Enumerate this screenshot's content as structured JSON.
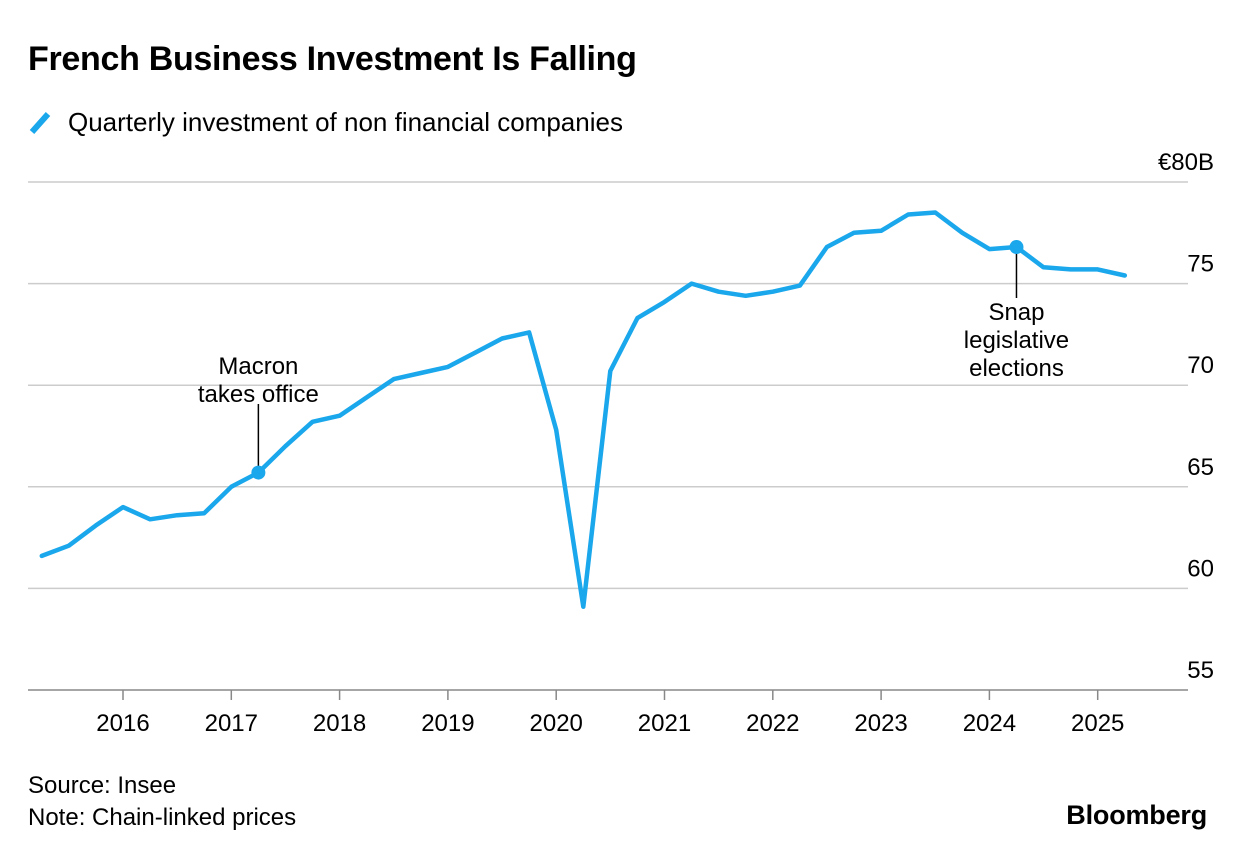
{
  "title": "French Business Investment Is Falling",
  "legend": {
    "label": "Quarterly investment of non financial companies"
  },
  "colors": {
    "series": "#1aa7ec",
    "grid": "#cccccc",
    "axis": "#888888",
    "text": "#000000"
  },
  "footer": {
    "source": "Source: Insee",
    "note": "Note: Chain-linked prices"
  },
  "brand": "Bloomberg",
  "chart_data": {
    "type": "line",
    "title": "French Business Investment Is Falling",
    "xlabel": "",
    "ylabel": "",
    "ylim": [
      55,
      80
    ],
    "xlim": [
      "2015-04",
      "2025-07"
    ],
    "grid": true,
    "legend": "top-left",
    "y_axis_side": "right",
    "y_ticks": [
      {
        "value": 80,
        "label": "€80B"
      },
      {
        "value": 75,
        "label": "75"
      },
      {
        "value": 70,
        "label": "70"
      },
      {
        "value": 65,
        "label": "65"
      },
      {
        "value": 60,
        "label": "60"
      },
      {
        "value": 55,
        "label": "55"
      }
    ],
    "x_ticks": [
      "2016",
      "2017",
      "2018",
      "2019",
      "2020",
      "2021",
      "2022",
      "2023",
      "2024",
      "2025"
    ],
    "series": [
      {
        "name": "Quarterly investment of non financial companies",
        "x": [
          "2015-Q2",
          "2015-Q3",
          "2015-Q4",
          "2016-Q1",
          "2016-Q2",
          "2016-Q3",
          "2016-Q4",
          "2017-Q1",
          "2017-Q2",
          "2017-Q3",
          "2017-Q4",
          "2018-Q1",
          "2018-Q2",
          "2018-Q3",
          "2018-Q4",
          "2019-Q1",
          "2019-Q2",
          "2019-Q3",
          "2019-Q4",
          "2020-Q1",
          "2020-Q2",
          "2020-Q3",
          "2020-Q4",
          "2021-Q1",
          "2021-Q2",
          "2021-Q3",
          "2021-Q4",
          "2022-Q1",
          "2022-Q2",
          "2022-Q3",
          "2022-Q4",
          "2023-Q1",
          "2023-Q2",
          "2023-Q3",
          "2023-Q4",
          "2024-Q1",
          "2024-Q2",
          "2024-Q3",
          "2024-Q4",
          "2025-Q1",
          "2025-Q2"
        ],
        "values": [
          61.6,
          62.1,
          63.1,
          64.0,
          63.4,
          63.6,
          63.7,
          65.0,
          65.7,
          67.0,
          68.2,
          68.5,
          69.4,
          70.3,
          70.6,
          70.9,
          71.6,
          72.3,
          72.6,
          67.8,
          59.1,
          70.7,
          73.3,
          74.1,
          75.0,
          74.6,
          74.4,
          74.6,
          74.9,
          76.8,
          77.5,
          77.6,
          78.4,
          78.5,
          77.5,
          76.7,
          76.8,
          75.8,
          75.7,
          75.7,
          75.4
        ]
      }
    ],
    "annotations": [
      {
        "x": "2017-Q2",
        "value": 65.7,
        "lines": [
          "Macron",
          "takes office"
        ],
        "placement": "above"
      },
      {
        "x": "2024-Q2",
        "value": 76.8,
        "lines": [
          "Snap",
          "legislative",
          "elections"
        ],
        "placement": "below"
      }
    ]
  }
}
